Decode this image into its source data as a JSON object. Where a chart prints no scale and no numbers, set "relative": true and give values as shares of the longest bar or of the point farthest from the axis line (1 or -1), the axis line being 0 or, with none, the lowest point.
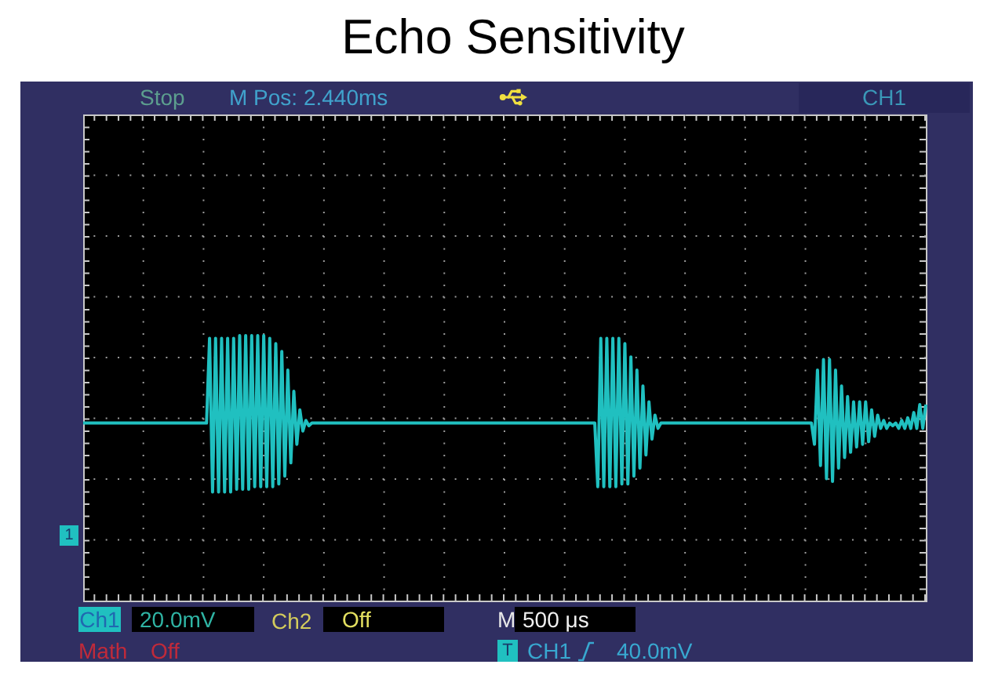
{
  "chart_data": {
    "type": "line",
    "title": "Echo Sensitivity",
    "relative": true,
    "grid": true,
    "categories": [
      null,
      null,
      null,
      null,
      null,
      null,
      null,
      null,
      null,
      null,
      null,
      null,
      null,
      null,
      null,
      null,
      null,
      null,
      null,
      null,
      null,
      null,
      null,
      null,
      null,
      null,
      null,
      null,
      null,
      null,
      null,
      null,
      null,
      null,
      null,
      null,
      null,
      null,
      null,
      null,
      null,
      null,
      null,
      null,
      null,
      null,
      null,
      null,
      null,
      null,
      null,
      null,
      null,
      null,
      null,
      null,
      null,
      null,
      null,
      null,
      null,
      null,
      null,
      null,
      null,
      null,
      null,
      null,
      null,
      null,
      null,
      null,
      null,
      null,
      null,
      null,
      null,
      null,
      null,
      null,
      null,
      null,
      null,
      null,
      null,
      null,
      null,
      null,
      null,
      null,
      null,
      null,
      null,
      null,
      null,
      null,
      null,
      null,
      null,
      null,
      null,
      null,
      null,
      null,
      null,
      null,
      null,
      null,
      null,
      null,
      null,
      null,
      null,
      null,
      null,
      null,
      null,
      null,
      null,
      null,
      null,
      null,
      null,
      null,
      null,
      null,
      null,
      null,
      null,
      null,
      null,
      null,
      null,
      null,
      null,
      null,
      null,
      null,
      null,
      null,
      null,
      null,
      null,
      null,
      null,
      null,
      null,
      null,
      null,
      null,
      null,
      null,
      null,
      null,
      null,
      null,
      null,
      null,
      null,
      null,
      null,
      null,
      null,
      null,
      null,
      null,
      null,
      null,
      null,
      null,
      null,
      null,
      null,
      null,
      null,
      null,
      null,
      null,
      null,
      null,
      null,
      null,
      null,
      null,
      null,
      null,
      null,
      null,
      null,
      null,
      null,
      null,
      null,
      null,
      null,
      null,
      null,
      null,
      null,
      null,
      null,
      null,
      null,
      null,
      null,
      null,
      null,
      null,
      null,
      null,
      null,
      null,
      null,
      null,
      null,
      null,
      null,
      null,
      null,
      null,
      null,
      null,
      null,
      null,
      null,
      null,
      null,
      null,
      null,
      null,
      null,
      null,
      null,
      null,
      null,
      null,
      null,
      null,
      null,
      null,
      null,
      null,
      null,
      null,
      null,
      null,
      null,
      null,
      null,
      null,
      null,
      null,
      null,
      null,
      null,
      null,
      null,
      null,
      null,
      null,
      null,
      null,
      null,
      null,
      null,
      null,
      null,
      null,
      null,
      null,
      null,
      null,
      null,
      null,
      null,
      null,
      null,
      null,
      null,
      null,
      null
    ],
    "series": [
      {
        "color": "#20c0c0",
        "values": [
          0.67,
          0.67,
          0.67,
          0.67,
          0.67,
          0.67,
          0.67,
          0.67,
          0.67,
          0.67,
          0.67,
          0.67,
          0.67,
          0.67,
          0.67,
          0.67,
          0.67,
          0.67,
          0.67,
          0.67,
          0.67,
          0.67,
          0.67,
          0.67,
          0.67,
          0.67,
          0.67,
          0.67,
          0.67,
          0.67,
          0.67,
          0.67,
          0.67,
          0.67,
          0.67,
          0.67,
          0.67,
          0.67,
          0.67,
          0.67,
          0.67,
          0.67,
          0.99,
          0.41,
          0.99,
          0.41,
          0.99,
          0.41,
          0.99,
          0.41,
          0.99,
          0.42,
          1.0,
          0.42,
          1.0,
          0.42,
          1.0,
          0.43,
          1.0,
          0.43,
          1.0,
          0.43,
          0.99,
          0.43,
          0.97,
          0.44,
          0.94,
          0.47,
          0.87,
          0.52,
          0.79,
          0.59,
          0.72,
          0.64,
          0.68,
          0.66,
          0.67,
          0.67,
          0.67,
          0.67,
          0.67,
          0.67,
          0.67,
          0.67,
          0.67,
          0.67,
          0.67,
          0.67,
          0.67,
          0.67,
          0.67,
          0.67,
          0.67,
          0.67,
          0.67,
          0.67,
          0.67,
          0.67,
          0.67,
          0.67,
          0.67,
          0.67,
          0.67,
          0.67,
          0.67,
          0.67,
          0.67,
          0.67,
          0.67,
          0.67,
          0.67,
          0.67,
          0.67,
          0.67,
          0.67,
          0.67,
          0.67,
          0.67,
          0.67,
          0.67,
          0.67,
          0.67,
          0.67,
          0.67,
          0.67,
          0.67,
          0.67,
          0.67,
          0.67,
          0.67,
          0.67,
          0.67,
          0.67,
          0.67,
          0.67,
          0.67,
          0.67,
          0.67,
          0.67,
          0.67,
          0.67,
          0.67,
          0.67,
          0.67,
          0.67,
          0.67,
          0.67,
          0.67,
          0.67,
          0.67,
          0.67,
          0.67,
          0.67,
          0.67,
          0.67,
          0.67,
          0.67,
          0.67,
          0.67,
          0.67,
          0.67,
          0.67,
          0.67,
          0.67,
          0.67,
          0.67,
          0.67,
          0.67,
          0.67,
          0.67,
          0.67,
          0.43,
          0.99,
          0.43,
          0.99,
          0.43,
          0.99,
          0.43,
          0.99,
          0.44,
          0.97,
          0.44,
          0.92,
          0.47,
          0.87,
          0.5,
          0.81,
          0.55,
          0.75,
          0.61,
          0.7,
          0.65,
          0.67,
          0.67,
          0.67,
          0.67,
          0.67,
          0.67,
          0.67,
          0.67,
          0.67,
          0.67,
          0.67,
          0.67,
          0.67,
          0.67,
          0.67,
          0.67,
          0.67,
          0.67,
          0.67,
          0.67,
          0.67,
          0.67,
          0.67,
          0.67,
          0.67,
          0.67,
          0.67,
          0.67,
          0.67,
          0.67,
          0.67,
          0.67,
          0.67,
          0.67,
          0.67,
          0.67,
          0.67,
          0.67,
          0.67,
          0.67,
          0.67,
          0.67,
          0.67,
          0.67,
          0.67,
          0.67,
          0.67,
          0.67,
          0.67,
          0.67,
          0.67,
          0.59,
          0.87,
          0.51,
          0.91,
          0.46,
          0.91,
          0.45,
          0.87,
          0.5,
          0.81,
          0.54,
          0.77,
          0.56,
          0.75,
          0.58,
          0.75,
          0.59,
          0.75,
          0.6,
          0.72,
          0.62,
          0.7,
          0.65,
          0.68,
          0.65,
          0.67,
          0.66,
          0.67,
          0.65,
          0.68,
          0.65,
          0.69,
          0.65,
          0.71,
          0.65,
          0.74,
          0.65,
          0.74
        ]
      }
    ],
    "annotations": [
      "Stop",
      "M Pos: 2.440ms",
      "CH1",
      "1",
      "Ch1",
      "20.0mV",
      "Ch2",
      "Off",
      "M",
      "500 μs",
      "Math",
      "Off",
      "T",
      "CH1",
      "40.0mV"
    ]
  }
}
